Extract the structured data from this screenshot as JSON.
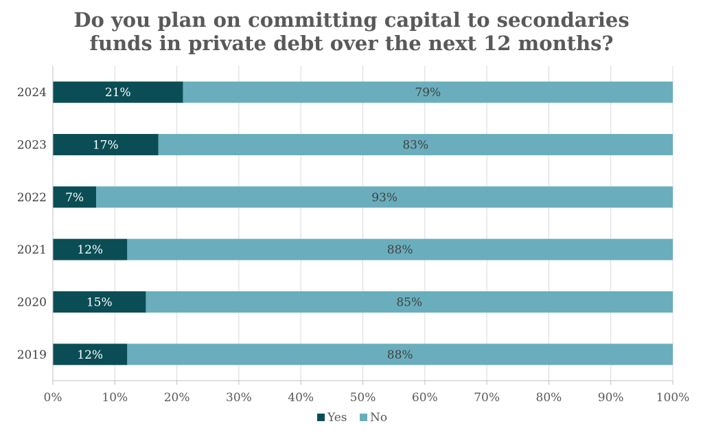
{
  "chart_data": {
    "type": "bar",
    "orientation": "horizontal",
    "stacked": true,
    "percent": true,
    "title": [
      "Do you plan on committing capital to secondaries",
      "funds in private debt over the next 12 months?"
    ],
    "categories": [
      "2024",
      "2023",
      "2022",
      "2021",
      "2020",
      "2019"
    ],
    "series": [
      {
        "name": "Yes",
        "values": [
          21,
          17,
          7,
          12,
          15,
          12
        ],
        "labels": [
          "21%",
          "17%",
          "7%",
          "12%",
          "15%",
          "12%"
        ],
        "color": "#0b4d55"
      },
      {
        "name": "No",
        "values": [
          79,
          83,
          93,
          88,
          85,
          88
        ],
        "labels": [
          "79%",
          "83%",
          "93%",
          "88%",
          "85%",
          "88%"
        ],
        "color": "#6aaebd"
      }
    ],
    "xlim": [
      0,
      100
    ],
    "xticks": [
      "0%",
      "10%",
      "20%",
      "30%",
      "40%",
      "50%",
      "60%",
      "70%",
      "80%",
      "90%",
      "100%"
    ],
    "grid": true,
    "legend_position": "bottom"
  }
}
